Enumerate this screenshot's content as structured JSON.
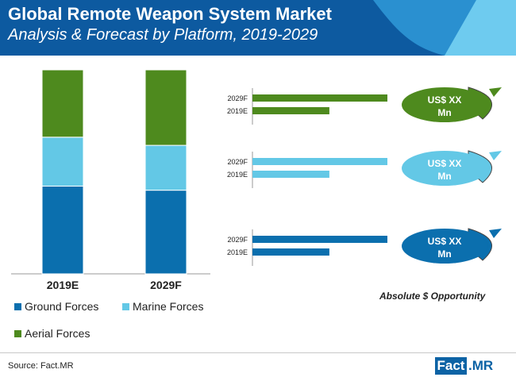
{
  "header": {
    "title": "Global Remote Weapon System Market",
    "subtitle": "Analysis & Forecast by Platform, 2019-2029"
  },
  "colors": {
    "ground": "#0b6fae",
    "marine": "#63c8e6",
    "aerial": "#4e8a1e",
    "header_dark": "#0d5aa0",
    "header_mid": "#2a90d0",
    "header_light": "#6ecbef"
  },
  "chart_data": [
    {
      "type": "bar",
      "stacked": true,
      "categories": [
        "2019E",
        "2029F"
      ],
      "series": [
        {
          "name": "Ground Forces",
          "values": [
            43,
            41
          ]
        },
        {
          "name": "Marine Forces",
          "values": [
            24,
            22
          ]
        },
        {
          "name": "Aerial Forces",
          "values": [
            33,
            37
          ]
        }
      ],
      "ylim": [
        0,
        100
      ],
      "legend": "bottom"
    },
    {
      "type": "bar",
      "orientation": "horizontal",
      "groups": [
        {
          "series_color": "aerial",
          "categories": [
            "2029F",
            "2019E"
          ],
          "values": [
            100,
            57
          ],
          "bubble": [
            "US$ XX",
            "Mn"
          ]
        },
        {
          "series_color": "marine",
          "categories": [
            "2029F",
            "2019E"
          ],
          "values": [
            100,
            57
          ],
          "bubble": [
            "US$ XX",
            "Mn"
          ]
        },
        {
          "series_color": "ground",
          "categories": [
            "2029F",
            "2019E"
          ],
          "values": [
            100,
            57
          ],
          "bubble": [
            "US$ XX",
            "Mn"
          ]
        }
      ],
      "caption": "Absolute $ Opportunity"
    }
  ],
  "footer": {
    "source": "Source: Fact.MR",
    "logo_left": "Fact",
    "logo_right": ".MR"
  }
}
